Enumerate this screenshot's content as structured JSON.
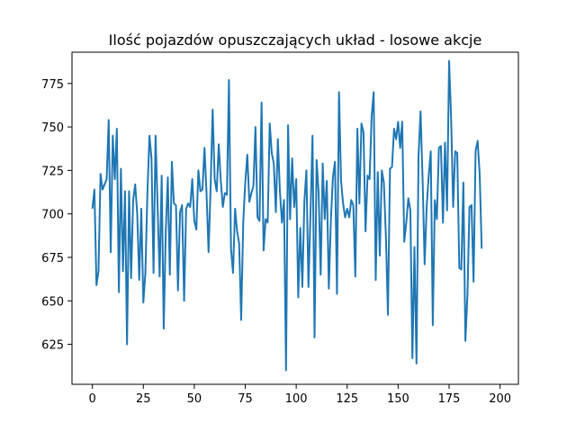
{
  "chart_data": {
    "type": "line",
    "title": "Ilość pojazdów opuszczających układ - losowe akcje",
    "xlabel": "",
    "ylabel": "",
    "xlim": [
      -10,
      209
    ],
    "ylim": [
      602,
      793
    ],
    "xticks": [
      0,
      25,
      50,
      75,
      100,
      125,
      150,
      175,
      200
    ],
    "yticks": [
      625,
      650,
      675,
      700,
      725,
      750,
      775
    ],
    "grid": false,
    "color": "#1f77b4",
    "series": [
      {
        "values": [
          703,
          714,
          659,
          667,
          723,
          714,
          717,
          720,
          754,
          678,
          745,
          720,
          749,
          655,
          726,
          667,
          713,
          625,
          713,
          663,
          708,
          717,
          700,
          662,
          703,
          649,
          666,
          712,
          745,
          732,
          666,
          745,
          704,
          664,
          722,
          634,
          690,
          721,
          665,
          730,
          706,
          705,
          656,
          701,
          705,
          650,
          703,
          706,
          704,
          720,
          696,
          691,
          725,
          713,
          714,
          738,
          712,
          678,
          715,
          760,
          720,
          713,
          740,
          719,
          704,
          712,
          711,
          777,
          680,
          666,
          703,
          690,
          683,
          639,
          695,
          718,
          734,
          707,
          712,
          716,
          750,
          698,
          696,
          764,
          679,
          697,
          695,
          752,
          735,
          729,
          701,
          743,
          713,
          695,
          708,
          610,
          751,
          697,
          732,
          704,
          720,
          652,
          692,
          658,
          707,
          725,
          658,
          700,
          745,
          629,
          731,
          712,
          665,
          729,
          697,
          719,
          657,
          696,
          721,
          730,
          654,
          770,
          719,
          706,
          698,
          703,
          698,
          708,
          705,
          664,
          749,
          706,
          752,
          747,
          690,
          722,
          720,
          756,
          770,
          662,
          724,
          676,
          725,
          718,
          687,
          642,
          726,
          727,
          749,
          743,
          753,
          738,
          753,
          684,
          695,
          709,
          702,
          617,
          681,
          614,
          733,
          759,
          720,
          671,
          704,
          722,
          736,
          636,
          708,
          697,
          738,
          739,
          695,
          741,
          702,
          788,
          755,
          704,
          736,
          735,
          669,
          668,
          718,
          627,
          653,
          704,
          705,
          661,
          736,
          742,
          723,
          680
        ]
      }
    ]
  }
}
